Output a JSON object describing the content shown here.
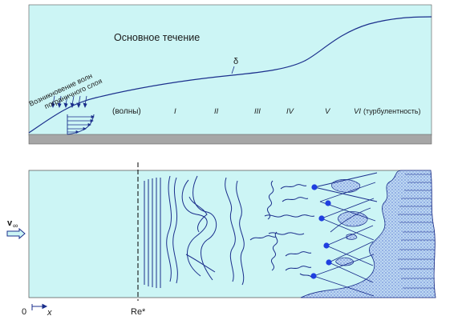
{
  "top_panel": {
    "main_flow_label": "Основное течение",
    "delta_label": "δ",
    "wave_origin_line1": "Возникновение волн",
    "wave_origin_line2": "пограничного слоя",
    "stage_waves": "(волны)",
    "stage_labels": [
      "I",
      "II",
      "III",
      "IV",
      "V",
      "VI"
    ],
    "turbulence_label": "(турбулентность)"
  },
  "bottom_panel": {
    "velocity_label": "v",
    "velocity_subscript": "∞",
    "origin_label": "0",
    "x_label": "x",
    "reynolds_label": "Re*"
  },
  "colors": {
    "fluid": "#ccf5f5",
    "wall": "#a6a6a6",
    "line": "#1b2f8c",
    "dot": "#1f3fe0"
  }
}
